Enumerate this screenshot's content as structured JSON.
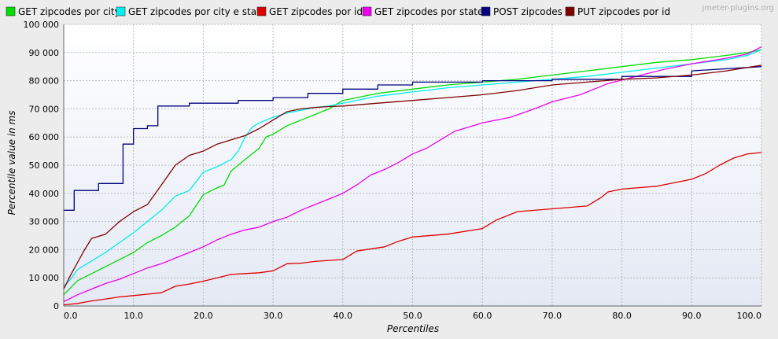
{
  "chart_data": {
    "type": "line",
    "watermark": "jmeter-plugins.org",
    "xlabel": "Percentiles",
    "ylabel": "Percentile value in ms",
    "xlim": [
      0,
      100
    ],
    "ylim": [
      0,
      100000
    ],
    "x_ticks": [
      0,
      10,
      20,
      30,
      40,
      50,
      60,
      70,
      80,
      90,
      100
    ],
    "x_tick_labels": [
      "0.0",
      "10.0",
      "20.0",
      "30.0",
      "40.0",
      "50.0",
      "60.0",
      "70.0",
      "80.0",
      "90.0",
      "100.0"
    ],
    "y_ticks": [
      0,
      10000,
      20000,
      30000,
      40000,
      50000,
      60000,
      70000,
      80000,
      90000,
      100000
    ],
    "y_tick_labels": [
      "0",
      "10 000",
      "20 000",
      "30 000",
      "40 000",
      "50 000",
      "60 000",
      "70 000",
      "80 000",
      "90 000",
      "100 000"
    ],
    "grid": true,
    "legend_position": "top",
    "series": [
      {
        "name": "GET zipcodes por city",
        "color": "#00dd00",
        "x": [
          0,
          1,
          2,
          4,
          6,
          8,
          10,
          12,
          14,
          16,
          18,
          20,
          22,
          23,
          24,
          26,
          28,
          29,
          30,
          32,
          34,
          36,
          38,
          40,
          45,
          50,
          55,
          60,
          65,
          70,
          75,
          80,
          85,
          90,
          95,
          98,
          100
        ],
        "y": [
          4000,
          6500,
          9000,
          11500,
          14000,
          16500,
          19000,
          22500,
          25000,
          28000,
          32000,
          39500,
          42000,
          43000,
          48000,
          52000,
          56000,
          60000,
          61000,
          64000,
          66000,
          68000,
          70000,
          73000,
          75500,
          77000,
          78500,
          79500,
          80500,
          82000,
          83500,
          85000,
          86500,
          87500,
          89000,
          90000,
          91000
        ]
      },
      {
        "name": "GET zipcodes por city e state",
        "color": "#00eeee",
        "x": [
          0,
          1,
          2,
          4,
          6,
          8,
          10,
          12,
          14,
          16,
          18,
          20,
          22,
          24,
          25,
          26,
          27,
          28,
          30,
          32,
          34,
          36,
          38,
          40,
          45,
          50,
          55,
          60,
          65,
          70,
          75,
          80,
          85,
          90,
          95,
          98,
          100
        ],
        "y": [
          7000,
          9500,
          13000,
          16000,
          19000,
          22500,
          26000,
          30000,
          34000,
          39000,
          41000,
          47500,
          49500,
          52000,
          55000,
          60000,
          63500,
          65000,
          67000,
          68500,
          69500,
          70500,
          71000,
          72000,
          74500,
          76000,
          77500,
          78500,
          79500,
          80500,
          81500,
          83000,
          84500,
          86000,
          87500,
          89000,
          91000
        ]
      },
      {
        "name": "GET zipcodes por id",
        "color": "#dd0000",
        "x": [
          0,
          2,
          4,
          6,
          8,
          10,
          12,
          14,
          16,
          18,
          20,
          22,
          24,
          26,
          28,
          30,
          32,
          34,
          36,
          40,
          42,
          46,
          48,
          50,
          55,
          60,
          62,
          65,
          70,
          75,
          77,
          78,
          80,
          85,
          90,
          92,
          94,
          96,
          98,
          100
        ],
        "y": [
          400,
          900,
          1800,
          2500,
          3200,
          3700,
          4200,
          4700,
          7000,
          7800,
          8800,
          10000,
          11200,
          11500,
          11800,
          12500,
          15000,
          15200,
          15800,
          16500,
          19500,
          21000,
          23000,
          24500,
          25500,
          27500,
          30500,
          33500,
          34500,
          35500,
          38500,
          40500,
          41500,
          42500,
          45000,
          47000,
          50000,
          52500,
          54000,
          54500
        ]
      },
      {
        "name": "GET zipcodes por state",
        "color": "#ee00ee",
        "x": [
          0,
          2,
          4,
          6,
          8,
          10,
          12,
          14,
          16,
          18,
          20,
          22,
          24,
          26,
          28,
          30,
          32,
          34,
          36,
          38,
          40,
          42,
          44,
          46,
          48,
          50,
          52,
          54,
          56,
          60,
          64,
          68,
          70,
          74,
          78,
          82,
          86,
          90,
          95,
          98,
          100
        ],
        "y": [
          1500,
          4000,
          6000,
          8000,
          9500,
          11500,
          13500,
          15000,
          17000,
          19000,
          21000,
          23500,
          25500,
          27000,
          28000,
          30000,
          31500,
          34000,
          36000,
          38000,
          40000,
          43000,
          46500,
          48500,
          51000,
          54000,
          56000,
          59000,
          62000,
          65000,
          67000,
          70500,
          72500,
          75000,
          79000,
          81500,
          84000,
          86000,
          88000,
          89500,
          92000
        ]
      },
      {
        "name": "POST zipcodes",
        "color": "#000080",
        "x": [
          0,
          1.5,
          1.5,
          5,
          5,
          8.5,
          8.5,
          10,
          10,
          12,
          12,
          13.5,
          13.5,
          18,
          18,
          25,
          25,
          30,
          30,
          35,
          35,
          40,
          40,
          45,
          45,
          50,
          50,
          60,
          60,
          70,
          70,
          80,
          80,
          90,
          90,
          100
        ],
        "y": [
          34000,
          34000,
          41000,
          41000,
          43500,
          43500,
          57500,
          57500,
          63000,
          63000,
          64000,
          64000,
          71000,
          71000,
          72000,
          72000,
          73000,
          73000,
          74000,
          74000,
          75500,
          75500,
          77000,
          77000,
          78500,
          78500,
          79500,
          79500,
          80000,
          80000,
          80500,
          80500,
          81500,
          81500,
          83500,
          85000
        ]
      },
      {
        "name": "PUT zipcodes por id",
        "color": "#800000",
        "x": [
          0,
          1,
          2,
          3,
          4,
          6,
          8,
          10,
          12,
          14,
          16,
          18,
          20,
          22,
          24,
          26,
          28,
          30,
          32,
          34,
          36,
          38,
          40,
          45,
          50,
          55,
          60,
          65,
          70,
          75,
          80,
          85,
          90,
          95,
          100
        ],
        "y": [
          6000,
          11000,
          15500,
          20000,
          24000,
          25500,
          30000,
          33500,
          36000,
          43000,
          50000,
          53500,
          55000,
          57500,
          59000,
          60500,
          63000,
          66000,
          69000,
          70000,
          70500,
          70800,
          71000,
          72000,
          73000,
          74000,
          75000,
          76500,
          78500,
          79500,
          80500,
          81000,
          82000,
          83500,
          85500
        ]
      }
    ]
  }
}
